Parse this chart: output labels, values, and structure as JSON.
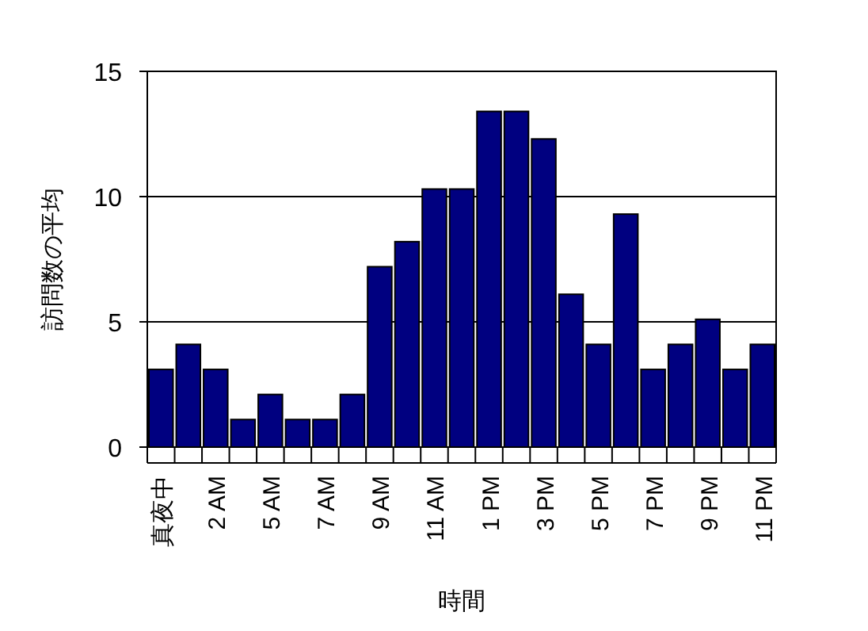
{
  "chart_data": {
    "type": "bar",
    "xlabel": "時間",
    "ylabel": "訪問数の平均",
    "categories": [
      "真夜中",
      null,
      "2 AM",
      null,
      "5 AM",
      null,
      "7 AM",
      null,
      "9 AM",
      null,
      "11 AM",
      null,
      "1 PM",
      null,
      "3 PM",
      null,
      "5 PM",
      null,
      "7 PM",
      null,
      "9 PM",
      null,
      "11 PM"
    ],
    "values": [
      3.1,
      4.1,
      3.1,
      1.1,
      2.1,
      1.1,
      1.1,
      2.1,
      7.2,
      8.2,
      10.3,
      10.3,
      13.4,
      13.4,
      12.3,
      6.1,
      4.1,
      9.3,
      3.1,
      4.1,
      5.1,
      3.1,
      4.1
    ],
    "color": "#000080",
    "ylim": [
      0,
      15
    ],
    "yticks": [
      0,
      5,
      10,
      15
    ],
    "grid": "y"
  }
}
